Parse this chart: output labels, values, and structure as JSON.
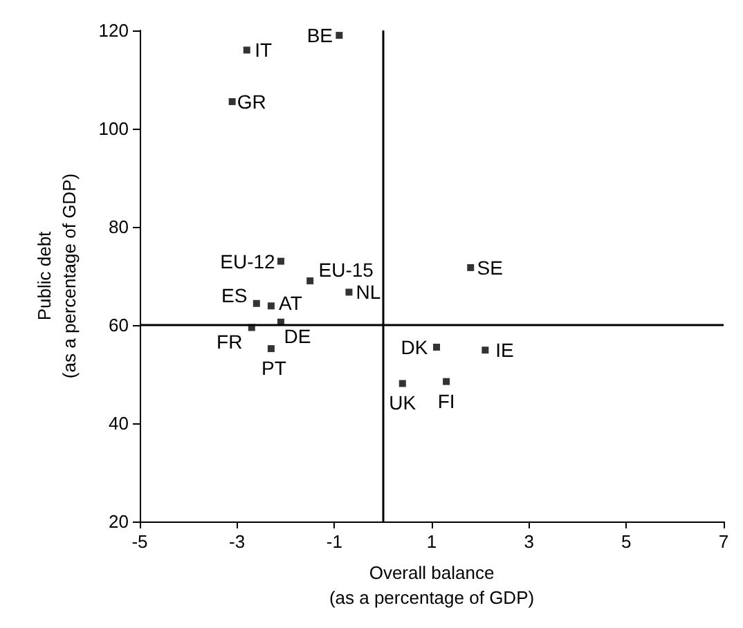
{
  "chart_data": {
    "type": "scatter",
    "xlabel": "Overall balance\n(as a percentage of GDP)",
    "ylabel": "Public debt\n(as a percentage of GDP)",
    "x": [
      -0.9,
      -2.8,
      -3.1,
      -2.1,
      -1.5,
      -0.7,
      -2.6,
      -2.3,
      -2.1,
      -2.7,
      -2.3,
      1.8,
      1.1,
      2.1,
      0.4,
      1.3
    ],
    "values": [
      119,
      116,
      105.5,
      73,
      69,
      66.7,
      64.4,
      63.9,
      60.6,
      59.5,
      55.2,
      71.7,
      55.5,
      54.9,
      48.1,
      48.5
    ],
    "color": "#000000",
    "marker": "square",
    "xlim": [
      -5,
      7
    ],
    "xticks": [
      -5,
      -3,
      -1,
      1,
      3,
      5,
      7
    ],
    "ylim": [
      20,
      120
    ],
    "yticks": [
      20,
      40,
      60,
      80,
      100,
      120
    ],
    "grid": false,
    "ref_lines": [
      {
        "axis": "x",
        "value": 0,
        "label": null,
        "color": "#000000"
      },
      {
        "axis": "y",
        "value": 60,
        "label": null,
        "color": "#000000"
      }
    ],
    "annotations": [
      {
        "text": "BE",
        "x": -0.9,
        "y": 119
      },
      {
        "text": "IT",
        "x": -2.8,
        "y": 116
      },
      {
        "text": "GR",
        "x": -3.1,
        "y": 105.5
      },
      {
        "text": "EU-12",
        "x": -2.1,
        "y": 73
      },
      {
        "text": "EU-15",
        "x": -1.5,
        "y": 69
      },
      {
        "text": "NL",
        "x": -0.7,
        "y": 66.7
      },
      {
        "text": "ES",
        "x": -2.6,
        "y": 64.4
      },
      {
        "text": "AT",
        "x": -2.3,
        "y": 63.9
      },
      {
        "text": "DE",
        "x": -2.1,
        "y": 60.6
      },
      {
        "text": "FR",
        "x": -2.7,
        "y": 59.5
      },
      {
        "text": "PT",
        "x": -2.3,
        "y": 55.2
      },
      {
        "text": "SE",
        "x": 1.8,
        "y": 71.7
      },
      {
        "text": "DK",
        "x": 1.1,
        "y": 55.5
      },
      {
        "text": "IE",
        "x": 2.1,
        "y": 54.9
      },
      {
        "text": "UK",
        "x": 0.4,
        "y": 48.1
      },
      {
        "text": "FI",
        "x": 1.3,
        "y": 48.5
      }
    ]
  }
}
